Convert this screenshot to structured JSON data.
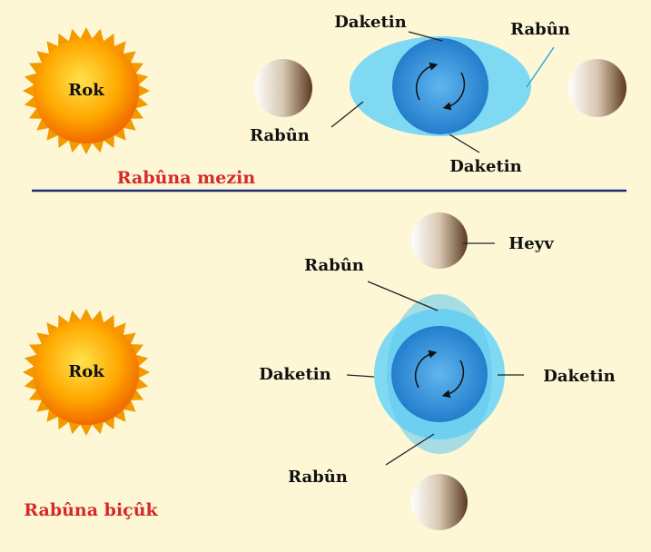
{
  "panels": [
    {
      "sun_label": "Rok",
      "caption": "Rabûna mezin",
      "labels": [
        "Daketin",
        "Rabûn",
        "Rabûn",
        "Daketin"
      ]
    },
    {
      "sun_label": "Rok",
      "moon_label": "Heyv",
      "caption": "Rabûna biçûk",
      "labels": [
        "Rabûn",
        "Daketin",
        "Daketin",
        "Rabûn"
      ]
    }
  ]
}
